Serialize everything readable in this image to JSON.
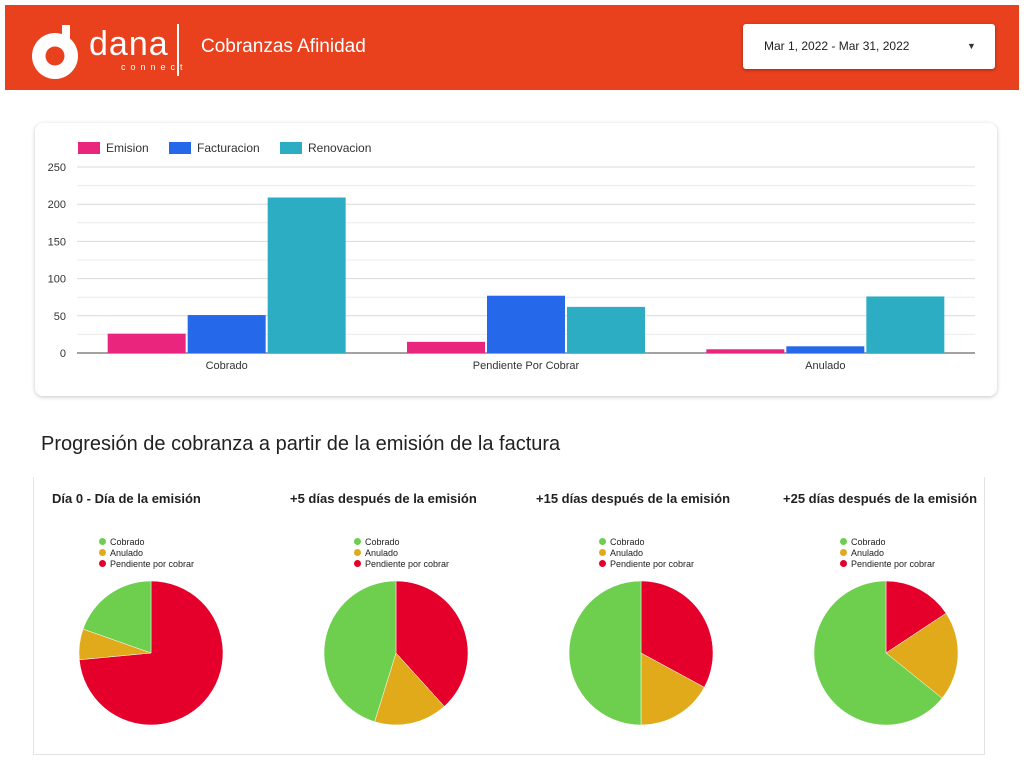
{
  "header": {
    "logo_word": "dana",
    "logo_sub": "connect",
    "title": "Cobranzas Afinidad",
    "date_range": "Mar 1, 2022 - Mar 31, 2022",
    "caret": "▼",
    "background_color": "#e9401e"
  },
  "section": {
    "pies_title": "Progresión de cobranza a partir de la emisión de la factura"
  },
  "chart_data": [
    {
      "type": "bar",
      "title": "",
      "xlabel": "",
      "ylabel": "",
      "categories": [
        "Cobrado",
        "Pendiente Por Cobrar",
        "Anulado"
      ],
      "series": [
        {
          "name": "Emision",
          "color": "#e9257d",
          "values": [
            26,
            15,
            5
          ]
        },
        {
          "name": "Facturacion",
          "color": "#2568ea",
          "values": [
            51,
            77,
            9
          ]
        },
        {
          "name": "Renovacion",
          "color": "#2cadc4",
          "values": [
            209,
            62,
            76
          ]
        }
      ],
      "ylim": [
        0,
        250
      ],
      "yticks": [
        "0",
        "50",
        "100",
        "150",
        "200",
        "250"
      ],
      "grid": true,
      "legend_position": "top-left"
    },
    {
      "type": "pie",
      "title": "Día 0 - Día de la emisión",
      "labels": [
        "Cobrado",
        "Anulado",
        "Pendiente por cobrar"
      ],
      "colors": [
        "#6ecf4e",
        "#e0aa1b",
        "#e4002b"
      ],
      "values": [
        19.6,
        6.9,
        73.5
      ],
      "legend_position": "top"
    },
    {
      "type": "pie",
      "title": "+5 días después de la emisión",
      "labels": [
        "Cobrado",
        "Anulado",
        "Pendiente por cobrar"
      ],
      "colors": [
        "#6ecf4e",
        "#e0aa1b",
        "#e4002b"
      ],
      "values": [
        45.2,
        16.5,
        38.3
      ],
      "legend_position": "top"
    },
    {
      "type": "pie",
      "title": "+15 días después de la emisión",
      "labels": [
        "Cobrado",
        "Anulado",
        "Pendiente por cobrar"
      ],
      "colors": [
        "#6ecf4e",
        "#e0aa1b",
        "#e4002b"
      ],
      "values": [
        50,
        17.1,
        32.9
      ],
      "legend_position": "top"
    },
    {
      "type": "pie",
      "title": "+25 días después de la emisión",
      "labels": [
        "Cobrado",
        "Anulado",
        "Pendiente por cobrar"
      ],
      "colors": [
        "#6ecf4e",
        "#e0aa1b",
        "#e4002b"
      ],
      "values": [
        64.2,
        20.1,
        15.7
      ],
      "legend_position": "top"
    }
  ]
}
